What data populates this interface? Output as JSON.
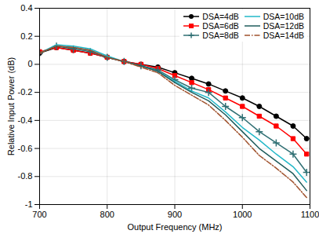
{
  "chart_data": {
    "type": "line",
    "x_label": "Output Frequency (MHz)",
    "y_label": "Relative Input Power (dB)",
    "x": [
      700,
      725,
      750,
      775,
      800,
      825,
      850,
      875,
      900,
      925,
      950,
      975,
      1000,
      1025,
      1050,
      1075,
      1095
    ],
    "series": [
      {
        "name": "DSA=4dB",
        "color": "#000000",
        "marker": "circle",
        "line_style": "solid",
        "values": [
          0.08,
          0.12,
          0.1,
          0.08,
          0.05,
          0.02,
          0,
          -0.02,
          -0.06,
          -0.1,
          -0.14,
          -0.19,
          -0.24,
          -0.3,
          -0.37,
          -0.44,
          -0.53
        ]
      },
      {
        "name": "DSA=6dB",
        "color": "#ff0000",
        "marker": "square",
        "line_style": "solid",
        "values": [
          0.09,
          0.12,
          0.1,
          0.08,
          0.05,
          0.02,
          0,
          -0.03,
          -0.08,
          -0.13,
          -0.18,
          -0.24,
          -0.3,
          -0.37,
          -0.44,
          -0.53,
          -0.64
        ]
      },
      {
        "name": "DSA=8dB",
        "color": "#2f6f73",
        "marker": "plus",
        "line_style": "solid",
        "values": [
          0.08,
          0.13,
          0.11,
          0.09,
          0.05,
          0.02,
          -0.01,
          -0.04,
          -0.11,
          -0.17,
          -0.2,
          -0.3,
          -0.38,
          -0.48,
          -0.56,
          -0.64,
          -0.77
        ]
      },
      {
        "name": "DSA=10dB",
        "color": "#22b8c8",
        "marker": "none",
        "line_style": "solid",
        "values": [
          0.08,
          0.14,
          0.13,
          0.11,
          0.06,
          0.02,
          -0.01,
          -0.05,
          -0.12,
          -0.19,
          -0.24,
          -0.34,
          -0.45,
          -0.54,
          -0.64,
          -0.73,
          -0.84
        ]
      },
      {
        "name": "DSA=12dB",
        "color": "#1f5c5c",
        "marker": "none",
        "line_style": "solid",
        "values": [
          0.08,
          0.13,
          0.12,
          0.1,
          0.05,
          0.02,
          -0.01,
          -0.05,
          -0.13,
          -0.2,
          -0.26,
          -0.36,
          -0.48,
          -0.6,
          -0.69,
          -0.78,
          -0.9
        ]
      },
      {
        "name": "DSA=14dB",
        "color": "#a0522d",
        "marker": "none",
        "line_style": "dashdot",
        "values": [
          0.08,
          0.13,
          0.12,
          0.1,
          0.05,
          0.02,
          -0.02,
          -0.06,
          -0.15,
          -0.22,
          -0.29,
          -0.4,
          -0.52,
          -0.65,
          -0.74,
          -0.84,
          -0.95
        ]
      }
    ],
    "xlim": [
      700,
      1100
    ],
    "xticks": [
      700,
      800,
      900,
      1000,
      1100
    ],
    "ylim": [
      -1,
      0.4
    ],
    "yticks": [
      -1,
      -0.8,
      -0.6,
      -0.4,
      -0.2,
      0,
      0.2,
      0.4
    ],
    "grid": true,
    "legend": "upper right"
  }
}
